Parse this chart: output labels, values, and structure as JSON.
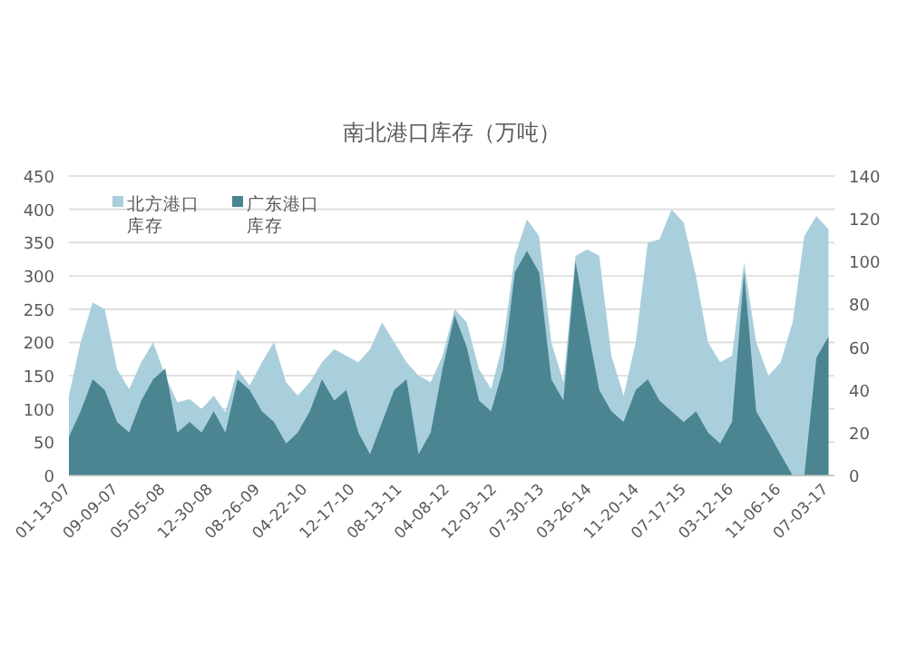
{
  "chart_data": {
    "type": "area",
    "title": "南北港口库存（万吨）",
    "x": [
      "2007-01",
      "2007-03",
      "2007-05",
      "2007-07",
      "2007-09",
      "2007-11",
      "2008-01",
      "2008-03",
      "2008-05",
      "2008-07",
      "2008-09",
      "2008-11",
      "2009-01",
      "2009-03",
      "2009-05",
      "2009-07",
      "2009-09",
      "2009-11",
      "2010-01",
      "2010-03",
      "2010-05",
      "2010-07",
      "2010-09",
      "2010-11",
      "2011-01",
      "2011-03",
      "2011-05",
      "2011-07",
      "2011-09",
      "2011-11",
      "2012-01",
      "2012-03",
      "2012-05",
      "2012-07",
      "2012-09",
      "2012-11",
      "2013-01",
      "2013-03",
      "2013-05",
      "2013-07",
      "2013-09",
      "2013-11",
      "2014-01",
      "2014-03",
      "2014-05",
      "2014-07",
      "2014-09",
      "2014-11",
      "2015-01",
      "2015-03",
      "2015-05",
      "2015-07",
      "2015-09",
      "2015-11",
      "2016-01",
      "2016-03",
      "2016-05",
      "2016-07",
      "2016-09",
      "2016-11",
      "2017-01",
      "2017-03",
      "2017-05",
      "2017-07"
    ],
    "series": [
      {
        "name": "北方港口库存",
        "color": "#a9cfdc",
        "values": [
          120,
          200,
          260,
          250,
          160,
          130,
          170,
          200,
          150,
          110,
          115,
          100,
          120,
          95,
          160,
          135,
          170,
          200,
          140,
          120,
          140,
          170,
          190,
          180,
          170,
          190,
          230,
          200,
          170,
          150,
          140,
          180,
          250,
          230,
          160,
          130,
          200,
          330,
          385,
          360,
          200,
          140,
          330,
          340,
          330,
          180,
          120,
          200,
          350,
          355,
          400,
          380,
          300,
          200,
          170,
          180,
          320,
          200,
          150,
          170,
          230,
          360,
          390,
          370
        ]
      },
      {
        "name": "广东港口库存",
        "color": "#4a8591",
        "axis": "y2",
        "values": [
          18,
          30,
          45,
          40,
          25,
          20,
          35,
          45,
          50,
          20,
          25,
          20,
          30,
          20,
          45,
          40,
          30,
          25,
          15,
          20,
          30,
          45,
          35,
          40,
          20,
          10,
          25,
          40,
          45,
          10,
          20,
          50,
          75,
          60,
          35,
          30,
          50,
          95,
          105,
          95,
          45,
          35,
          100,
          70,
          40,
          30,
          25,
          40,
          45,
          35,
          30,
          25,
          30,
          20,
          15,
          25,
          95,
          30,
          20,
          10,
          0,
          0,
          55,
          65
        ]
      }
    ],
    "xlim": [
      "2007-01-01",
      "2017-07-31"
    ],
    "xticks": [
      {
        "value": "2007-01-13",
        "label": "01-13-07"
      },
      {
        "value": "2007-09-09",
        "label": "09-09-07"
      },
      {
        "value": "2008-05-05",
        "label": "05-05-08"
      },
      {
        "value": "2008-12-30",
        "label": "12-30-08"
      },
      {
        "value": "2009-08-26",
        "label": "08-26-09"
      },
      {
        "value": "2010-04-22",
        "label": "04-22-10"
      },
      {
        "value": "2010-12-17",
        "label": "12-17-10"
      },
      {
        "value": "2011-08-13",
        "label": "08-13-11"
      },
      {
        "value": "2012-04-08",
        "label": "04-08-12"
      },
      {
        "value": "2012-12-03",
        "label": "12-03-12"
      },
      {
        "value": "2013-07-30",
        "label": "07-30-13"
      },
      {
        "value": "2014-03-26",
        "label": "03-26-14"
      },
      {
        "value": "2014-11-20",
        "label": "11-20-14"
      },
      {
        "value": "2015-07-17",
        "label": "07-17-15"
      },
      {
        "value": "2016-03-12",
        "label": "03-12-16"
      },
      {
        "value": "2016-11-06",
        "label": "11-06-16"
      },
      {
        "value": "2017-07-03",
        "label": "07-03-17"
      }
    ],
    "ylim": [
      0,
      450
    ],
    "yticks": [
      0,
      50,
      100,
      150,
      200,
      250,
      300,
      350,
      400,
      450
    ],
    "y2lim": [
      0,
      140
    ],
    "y2ticks": [
      0,
      20,
      40,
      60,
      80,
      100,
      120,
      140
    ],
    "grid": "y",
    "legend": "top left",
    "marker": "none"
  }
}
